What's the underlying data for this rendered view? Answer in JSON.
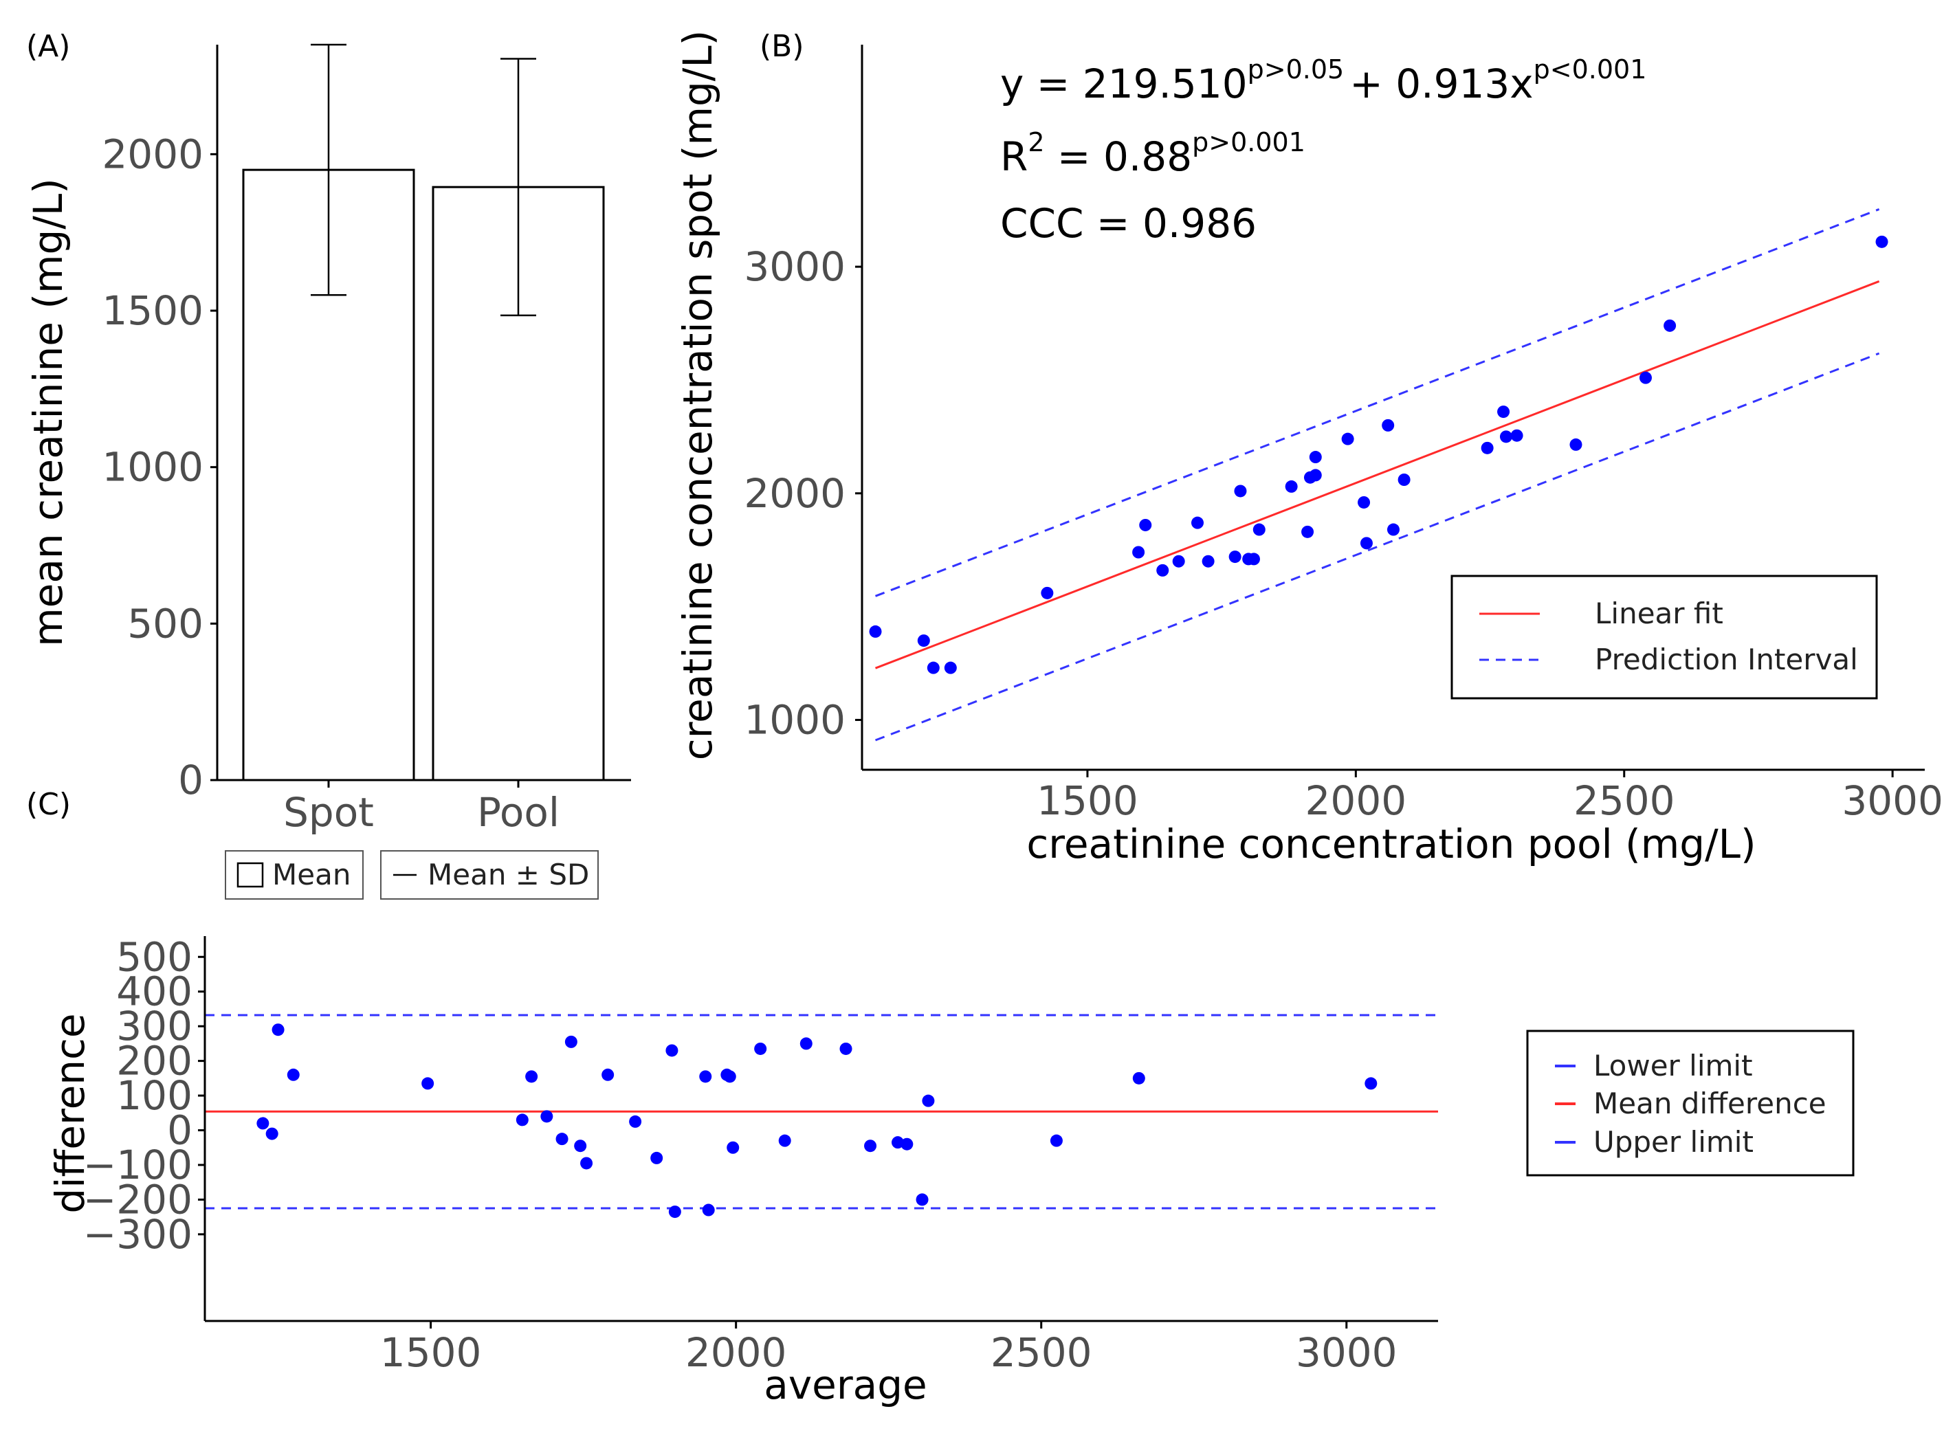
{
  "panels": {
    "a": {
      "label": "(A)"
    },
    "b": {
      "label": "(B)"
    },
    "c": {
      "label": "(C)"
    }
  },
  "colors": {
    "points": "#0000ff",
    "fit": "#ff2a2a",
    "interval": "#3333ff",
    "axis": "#000000",
    "tick": "#4d4d4d"
  },
  "chart_data": [
    {
      "id": "A",
      "type": "bar",
      "ylabel": "mean creatinine (mg/L)",
      "xlabel": "",
      "categories": [
        "Spot",
        "Pool"
      ],
      "values": [
        1950,
        1895
      ],
      "error_sd": [
        400,
        410
      ],
      "ylim": [
        0,
        2350
      ],
      "yticks": [
        0,
        500,
        1000,
        1500,
        2000
      ],
      "legend": {
        "mean": "Mean",
        "sd": "Mean ± SD"
      }
    },
    {
      "id": "B",
      "type": "scatter",
      "xlabel": "creatinine concentration pool (mg/L)",
      "ylabel": "creatinine concentration spot (mg/L)",
      "xlim": [
        1080,
        3060
      ],
      "ylim": [
        780,
        3980
      ],
      "xticks": [
        1500,
        2000,
        2500,
        3000
      ],
      "yticks": [
        1000,
        2000,
        3000
      ],
      "x": [
        1105,
        1195,
        1213,
        1245,
        1425,
        1595,
        1608,
        1640,
        1670,
        1705,
        1725,
        1775,
        1785,
        1800,
        1810,
        1820,
        1880,
        1910,
        1915,
        1925,
        1925,
        1985,
        2015,
        2020,
        2060,
        2070,
        2090,
        2245,
        2275,
        2280,
        2300,
        2410,
        2540,
        2585,
        2980
      ],
      "y": [
        1390,
        1350,
        1230,
        1230,
        1560,
        1740,
        1860,
        1660,
        1700,
        1870,
        1700,
        1720,
        2010,
        1710,
        1710,
        1840,
        2030,
        1830,
        2070,
        2160,
        2080,
        2240,
        1960,
        1780,
        2300,
        1840,
        2060,
        2200,
        2360,
        2250,
        2255,
        2215,
        2510,
        2740,
        3110
      ],
      "fit": {
        "intercept": 219.51,
        "slope": 0.913,
        "x_range": [
          1105,
          2975
        ]
      },
      "interval_halfwidth": 318,
      "legend": [
        "Linear fit",
        "Prediction Interval"
      ],
      "legend_position": "bottom-right",
      "annotations": {
        "equation": {
          "prefix": "y = 219.510",
          "sup1": "p>0.05",
          "mid": "+ 0.913x",
          "sup2": "p<0.001"
        },
        "r2": {
          "prefix": "R",
          "sup_base": "2",
          "mid": " = 0.88",
          "sup": "p>0.001"
        },
        "ccc": "CCC = 0.986"
      }
    },
    {
      "id": "C",
      "type": "scatter",
      "title": "",
      "xlabel": "average",
      "ylabel": "difference",
      "xlim": [
        1130,
        3150
      ],
      "ylim": [
        -550,
        560
      ],
      "xticks": [
        1500,
        2000,
        2500,
        3000
      ],
      "yticks": [
        -300,
        -200,
        -100,
        0,
        100,
        200,
        300,
        400,
        500
      ],
      "x": [
        1225,
        1240,
        1250,
        1275,
        1495,
        1650,
        1665,
        1690,
        1715,
        1730,
        1745,
        1755,
        1790,
        1835,
        1870,
        1895,
        1900,
        1950,
        1955,
        1985,
        1990,
        1995,
        2040,
        2080,
        2115,
        2180,
        2220,
        2265,
        2280,
        2305,
        2315,
        2525,
        2660,
        3040
      ],
      "y": [
        20,
        -10,
        290,
        160,
        135,
        30,
        155,
        40,
        -25,
        255,
        -45,
        -95,
        160,
        25,
        -80,
        230,
        -235,
        155,
        -230,
        160,
        155,
        -50,
        235,
        -30,
        250,
        235,
        -45,
        -35,
        -40,
        -200,
        85,
        -30,
        150,
        135
      ],
      "mean_difference": 54,
      "lower_limit": -225,
      "upper_limit": 332,
      "legend": [
        "Lower limit",
        "Mean difference",
        "Upper limit"
      ]
    }
  ]
}
